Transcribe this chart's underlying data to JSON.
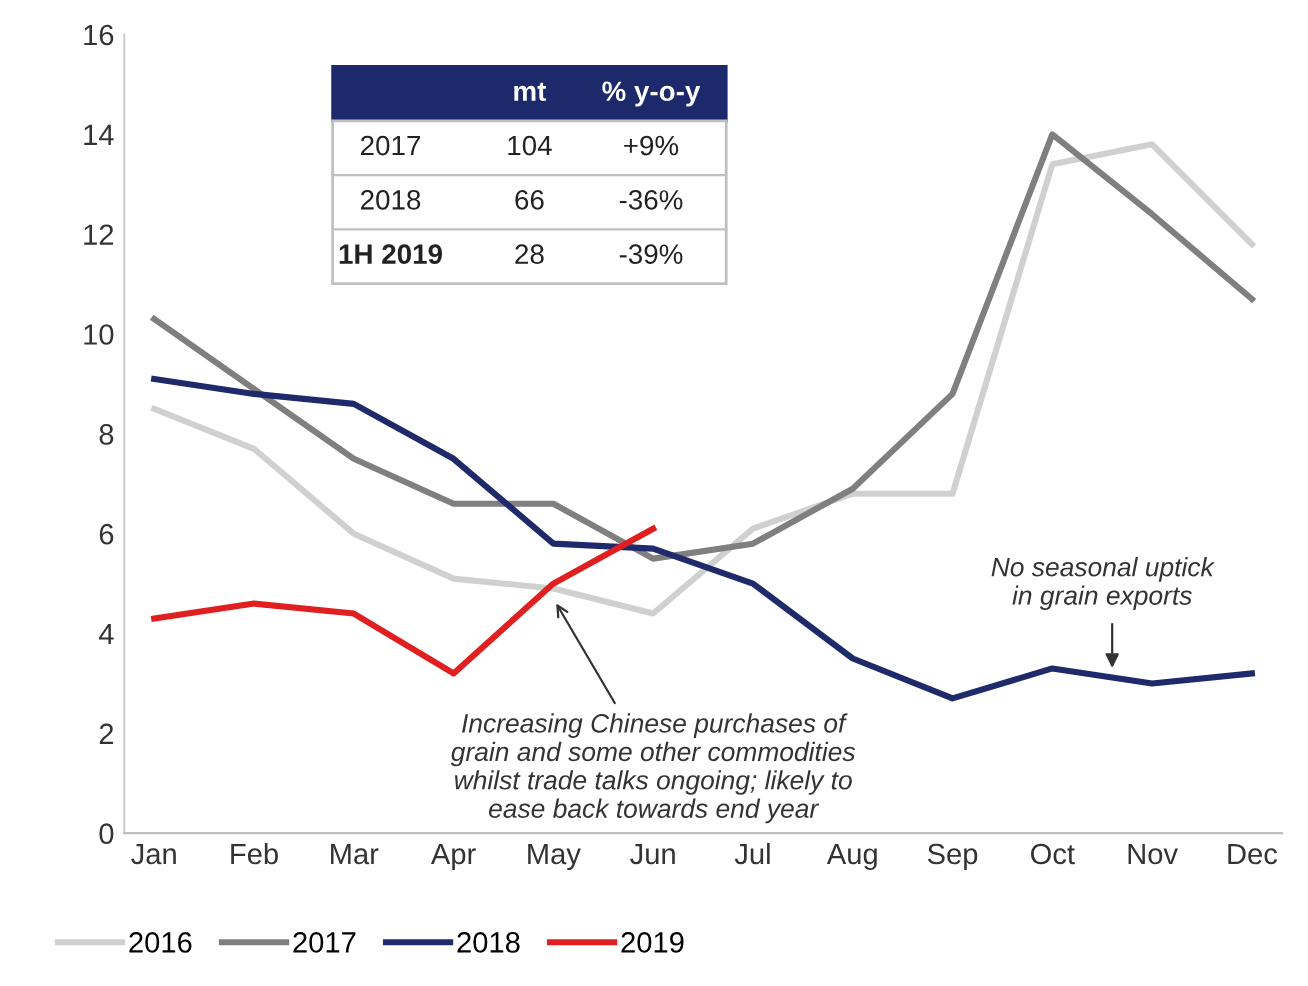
{
  "chart_data": {
    "type": "line",
    "categories": [
      "Jan",
      "Feb",
      "Mar",
      "Apr",
      "May",
      "Jun",
      "Jul",
      "Aug",
      "Sep",
      "Oct",
      "Nov",
      "Dec"
    ],
    "series": [
      {
        "name": "2016",
        "color": "#d0d0d0",
        "values": [
          8.5,
          7.7,
          6.0,
          5.1,
          4.9,
          4.4,
          6.1,
          6.8,
          6.8,
          13.4,
          13.8,
          11.8
        ]
      },
      {
        "name": "2017",
        "color": "#7f7f7f",
        "values": [
          10.3,
          8.9,
          7.5,
          6.6,
          6.6,
          5.5,
          5.8,
          6.9,
          8.8,
          14.0,
          12.4,
          10.7
        ]
      },
      {
        "name": "2018",
        "color": "#1f2a6b",
        "values": [
          9.1,
          8.8,
          8.6,
          7.5,
          5.8,
          5.7,
          5.0,
          3.5,
          2.7,
          3.3,
          3.0,
          3.2
        ]
      },
      {
        "name": "2019",
        "color": "#e02020",
        "values": [
          4.3,
          4.6,
          4.4,
          3.2,
          5.0,
          6.1,
          null,
          null,
          null,
          null,
          null,
          null
        ]
      }
    ],
    "ylim": [
      0,
      16
    ],
    "yticks": [
      0,
      2,
      4,
      6,
      8,
      10,
      12,
      14,
      16
    ],
    "grid": false,
    "legend": "bottom left",
    "marker": "none",
    "line_style": "solid",
    "annotations": [
      "mt",
      "% y-o-y",
      "2017",
      "104",
      "+9%",
      "2018",
      "66",
      "-36%",
      "1H 2019",
      "28",
      "-39%",
      {
        "text": "Increasing Chinese purchases of\ngrain and some other commodities\nwhilst trade talks ongoing; likely to\nease back towards end year",
        "x": "May",
        "y": 4.7
      },
      "No seasonal uptick\nin grain exports"
    ]
  }
}
